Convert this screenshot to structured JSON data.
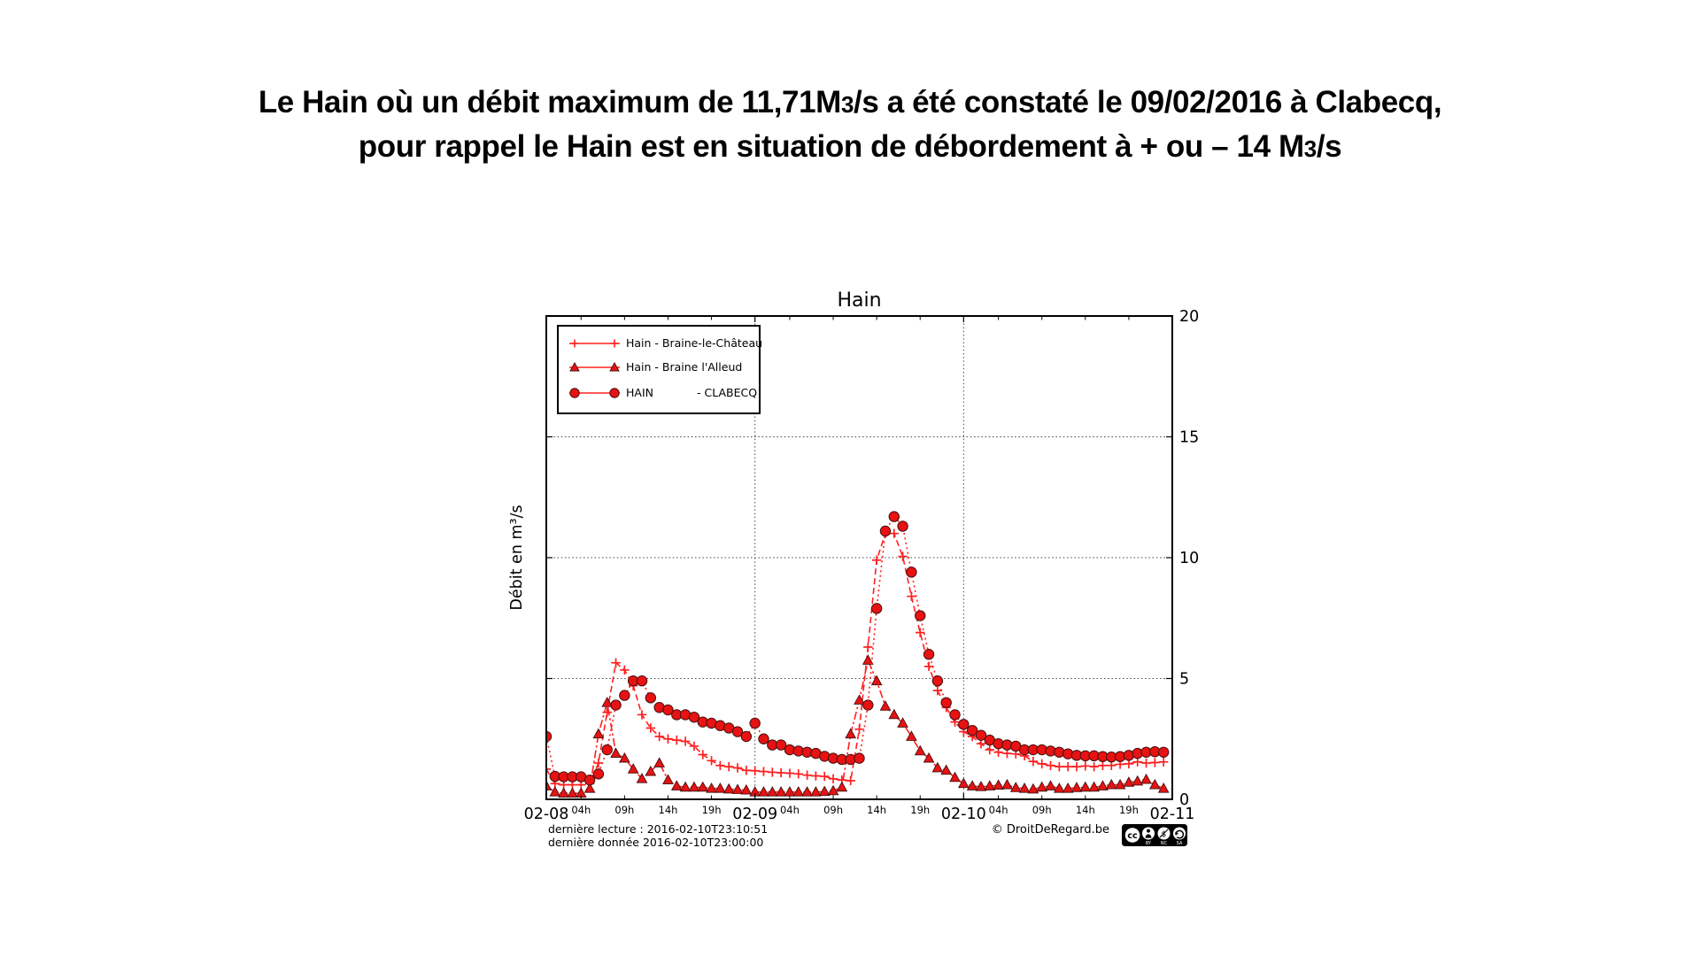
{
  "header": {
    "line1_pre": "Le Hain où un débit maximum de 11,71M",
    "line1_sub": "3",
    "line1_post": "/s a été constaté le 09/02/2016 à Clabecq,",
    "line2_pre": "pour rappel le Hain est en situation de débordement à + ou – 14 M",
    "line2_sub": "3",
    "line2_post": "/s"
  },
  "chart_data": {
    "type": "line",
    "title": "Hain",
    "xlabel": "",
    "ylabel": "Débit en m³/s",
    "ylim": [
      0,
      20
    ],
    "yticks": [
      0,
      5,
      10,
      15,
      20
    ],
    "grid": {
      "h_values": [
        5,
        10,
        15
      ],
      "v_hours": [
        24,
        48
      ],
      "style": "dotted"
    },
    "x_unit": "hours from 2016-02-08 00:00, range 0-72",
    "x_axis": {
      "days": [
        {
          "t": 0,
          "label": "02-08"
        },
        {
          "t": 24,
          "label": "02-09"
        },
        {
          "t": 48,
          "label": "02-10"
        },
        {
          "t": 72,
          "label": "02-11"
        }
      ],
      "hours": [
        {
          "t": 4,
          "label": "04h"
        },
        {
          "t": 9,
          "label": "09h"
        },
        {
          "t": 14,
          "label": "14h"
        },
        {
          "t": 19,
          "label": "19h"
        },
        {
          "t": 28,
          "label": "04h"
        },
        {
          "t": 33,
          "label": "09h"
        },
        {
          "t": 38,
          "label": "14h"
        },
        {
          "t": 43,
          "label": "19h"
        },
        {
          "t": 52,
          "label": "04h"
        },
        {
          "t": 57,
          "label": "09h"
        },
        {
          "t": 62,
          "label": "14h"
        },
        {
          "t": 67,
          "label": "19h"
        }
      ]
    },
    "colors": {
      "line": "#ff2020",
      "marker_fill": "#e81212",
      "marker_edge": "#451010"
    },
    "legend_position": "upper-left",
    "series": [
      {
        "id": "braine-le-chateau",
        "name": "Hain - Braine-le-Château",
        "marker": "plus",
        "dash": "7 4",
        "t_start": 0,
        "t_step": 1,
        "values": [
          1.25,
          0.65,
          0.6,
          0.6,
          0.6,
          0.65,
          1.5,
          3.6,
          5.65,
          5.35,
          4.7,
          3.5,
          2.95,
          2.6,
          2.5,
          2.45,
          2.4,
          2.2,
          1.85,
          1.6,
          1.4,
          1.35,
          1.3,
          1.2,
          1.18,
          1.15,
          1.12,
          1.1,
          1.08,
          1.05,
          1.0,
          0.97,
          0.95,
          0.85,
          0.8,
          0.77,
          2.9,
          6.3,
          9.9,
          11.0,
          11.0,
          10.05,
          8.4,
          6.9,
          5.5,
          4.5,
          3.8,
          3.2,
          2.8,
          2.6,
          2.3,
          2.05,
          1.95,
          1.9,
          1.88,
          1.8,
          1.57,
          1.47,
          1.4,
          1.35,
          1.35,
          1.35,
          1.38,
          1.35,
          1.4,
          1.4,
          1.45,
          1.47,
          1.55,
          1.5,
          1.52,
          1.55
        ]
      },
      {
        "id": "braine-l-alleud",
        "name": "Hain - Braine l'Alleud",
        "marker": "triangle",
        "dash": "9 3 2.5 3",
        "t_start": 0,
        "t_step": 1,
        "values": [
          0.55,
          0.3,
          0.25,
          0.25,
          0.25,
          0.45,
          2.7,
          4.0,
          1.9,
          1.7,
          1.25,
          0.85,
          1.15,
          1.5,
          0.8,
          0.55,
          0.5,
          0.5,
          0.5,
          0.45,
          0.45,
          0.42,
          0.4,
          0.38,
          0.3,
          0.3,
          0.3,
          0.3,
          0.3,
          0.3,
          0.3,
          0.3,
          0.32,
          0.35,
          0.5,
          2.7,
          4.1,
          5.75,
          4.9,
          3.85,
          3.5,
          3.15,
          2.6,
          2.0,
          1.7,
          1.3,
          1.2,
          0.9,
          0.65,
          0.55,
          0.52,
          0.55,
          0.58,
          0.6,
          0.48,
          0.45,
          0.42,
          0.5,
          0.55,
          0.45,
          0.45,
          0.48,
          0.5,
          0.5,
          0.55,
          0.6,
          0.6,
          0.7,
          0.75,
          0.82,
          0.6,
          0.45
        ]
      },
      {
        "id": "clabecq",
        "name": "HAIN - CLABECQ",
        "legend_left": "HAIN",
        "legend_right": "- CLABECQ",
        "marker": "circle",
        "dash": "2 3.5",
        "t_start": 0,
        "t_step": 1,
        "values": [
          2.6,
          0.95,
          0.93,
          0.93,
          0.93,
          0.8,
          1.05,
          2.05,
          3.9,
          4.3,
          4.9,
          4.9,
          4.2,
          3.8,
          3.7,
          3.5,
          3.5,
          3.4,
          3.2,
          3.15,
          3.05,
          2.95,
          2.8,
          2.6,
          3.15,
          2.5,
          2.25,
          2.25,
          2.05,
          2.0,
          1.95,
          1.9,
          1.78,
          1.7,
          1.65,
          1.65,
          1.7,
          3.9,
          7.9,
          11.1,
          11.7,
          11.3,
          9.4,
          7.6,
          6.0,
          4.9,
          4.0,
          3.5,
          3.1,
          2.85,
          2.65,
          2.45,
          2.3,
          2.25,
          2.2,
          2.05,
          2.05,
          2.05,
          2.0,
          1.95,
          1.88,
          1.82,
          1.8,
          1.8,
          1.77,
          1.75,
          1.77,
          1.82,
          1.9,
          1.95,
          1.97,
          1.95
        ]
      }
    ],
    "annotations": {
      "max_value": "11,71 M3/s at Clabecq on 09/02/2016"
    }
  },
  "footer": {
    "last_read": "dernière lecture : 2016-02-10T23:10:51",
    "last_data": "dernière donnée  2016-02-10T23:00:00",
    "copyright": "© DroitDeRegard.be"
  },
  "badge": {
    "cc": "cc",
    "by": "BY",
    "nc": "NC",
    "sa": "SA"
  }
}
